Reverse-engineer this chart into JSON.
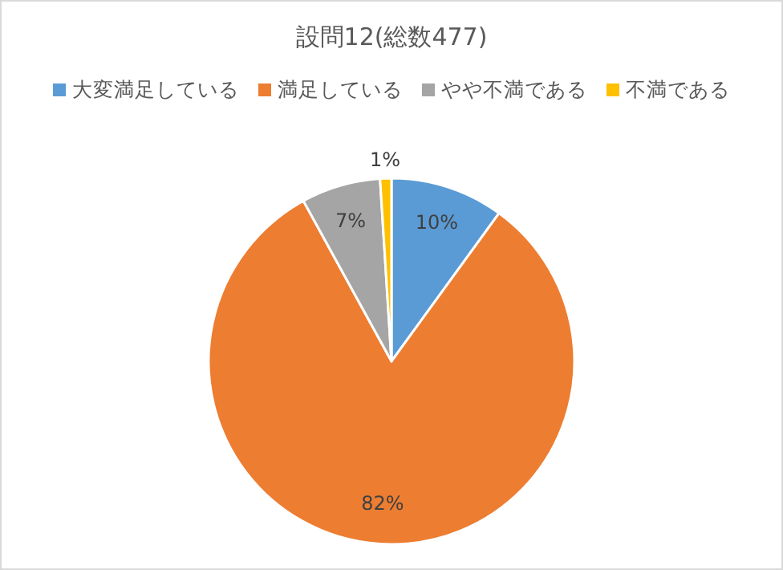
{
  "chart_data": {
    "type": "pie",
    "title": "設問12(総数477)",
    "categories": [
      "大変満足している",
      "満足している",
      "やや不満である",
      "不満である"
    ],
    "values": [
      10,
      82,
      7,
      1
    ],
    "colors": [
      "#5b9bd5",
      "#ed7d31",
      "#a5a5a5",
      "#ffc000"
    ],
    "value_labels": [
      "10%",
      "82%",
      "7%",
      "1%"
    ],
    "legend": "top"
  }
}
